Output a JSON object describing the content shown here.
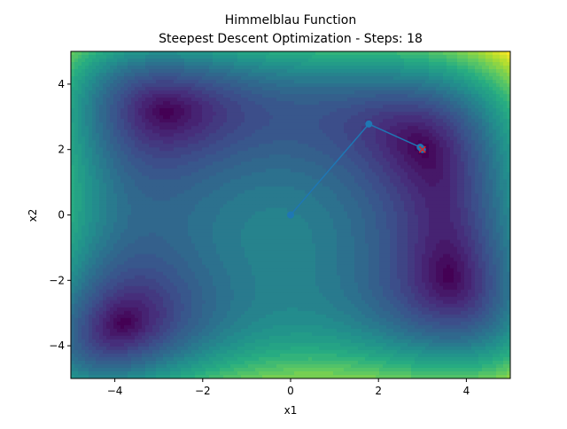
{
  "chart_data": {
    "type": "contour",
    "title": "Himmelblau Function",
    "subtitle": "Steepest Descent Optimization - Steps: 18",
    "xlabel": "x1",
    "ylabel": "x2",
    "xlim": [
      -5,
      5
    ],
    "ylim": [
      -5,
      5
    ],
    "xticks": [
      -4,
      -2,
      0,
      2,
      4
    ],
    "yticks": [
      -4,
      -2,
      0,
      2,
      4
    ],
    "xtick_labels": [
      "−4",
      "−2",
      "0",
      "2",
      "4"
    ],
    "ytick_labels": [
      "−4",
      "−2",
      "0",
      "2",
      "4"
    ],
    "grid": false,
    "colormap": "viridis",
    "surface": "(x1^2 + x2 - 11)^2 + (x1 + x2^2 - 7)^2",
    "path": {
      "color": "#1f77b4",
      "points": [
        {
          "x": 0.0,
          "y": 0.0
        },
        {
          "x": 1.78,
          "y": 2.78
        },
        {
          "x": 2.95,
          "y": 2.07
        },
        {
          "x": 2.98,
          "y": 2.03
        },
        {
          "x": 3.0,
          "y": 2.0
        }
      ]
    },
    "optimum_marker": {
      "x": 3.0,
      "y": 2.0,
      "color": "#d62728",
      "symbol": "x"
    }
  }
}
